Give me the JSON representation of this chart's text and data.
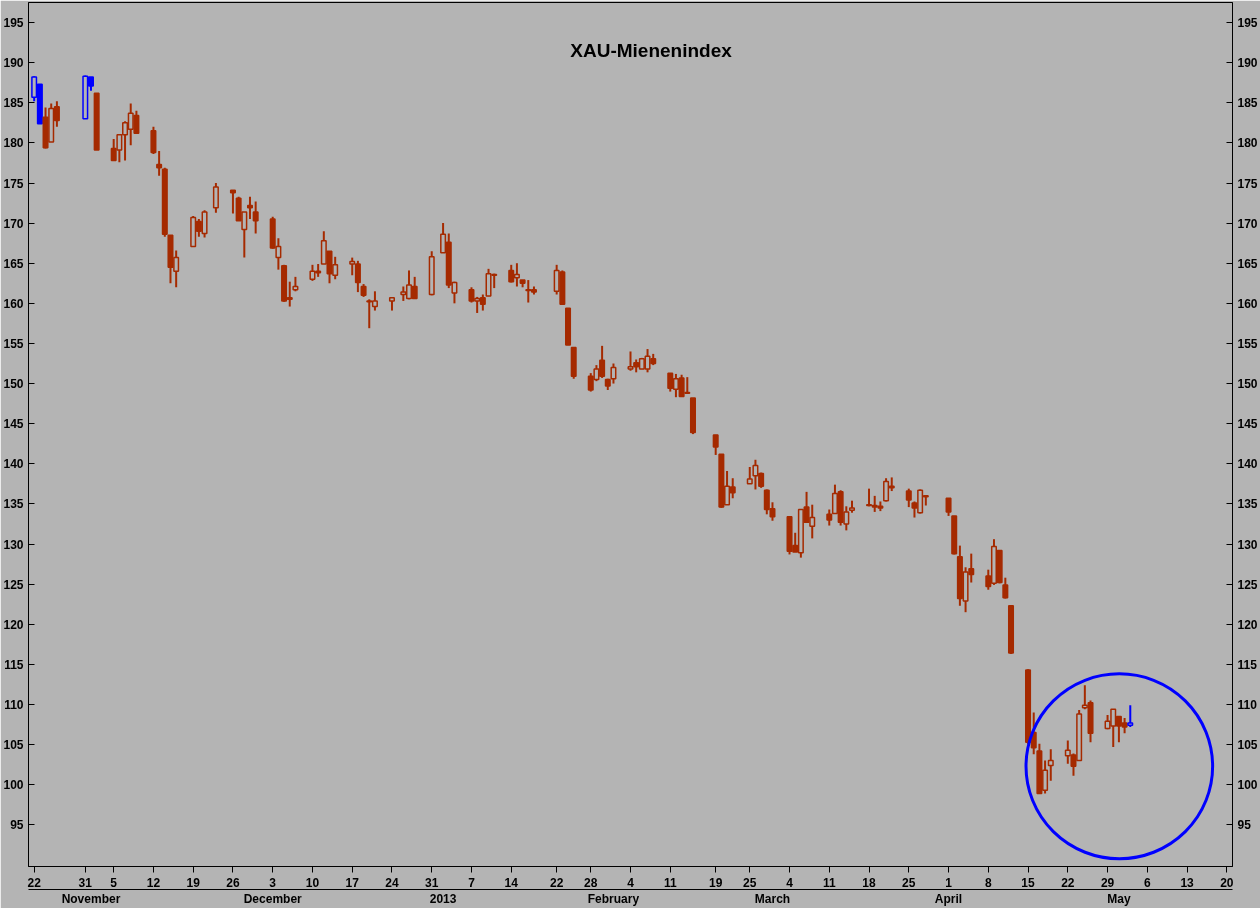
{
  "chart_data": {
    "type": "candlestick",
    "title": "XAU-Mienenindex",
    "x": [
      "2012-10-22",
      "2012-10-23",
      "2012-10-24",
      "2012-10-25",
      "2012-10-26",
      "2012-10-31",
      "2012-11-01",
      "2012-11-02",
      "2012-11-05",
      "2012-11-06",
      "2012-11-07",
      "2012-11-08",
      "2012-11-09",
      "2012-11-12",
      "2012-11-13",
      "2012-11-14",
      "2012-11-15",
      "2012-11-16",
      "2012-11-19",
      "2012-11-20",
      "2012-11-21",
      "2012-11-23",
      "2012-11-26",
      "2012-11-27",
      "2012-11-28",
      "2012-11-29",
      "2012-11-30",
      "2012-12-03",
      "2012-12-04",
      "2012-12-05",
      "2012-12-06",
      "2012-12-07",
      "2012-12-10",
      "2012-12-11",
      "2012-12-12",
      "2012-12-13",
      "2012-12-14",
      "2012-12-17",
      "2012-12-18",
      "2012-12-19",
      "2012-12-20",
      "2012-12-21",
      "2012-12-24",
      "2012-12-26",
      "2012-12-27",
      "2012-12-28",
      "2012-12-31",
      "2013-01-02",
      "2013-01-03",
      "2013-01-04",
      "2013-01-07",
      "2013-01-08",
      "2013-01-09",
      "2013-01-10",
      "2013-01-11",
      "2013-01-14",
      "2013-01-15",
      "2013-01-16",
      "2013-01-17",
      "2013-01-18",
      "2013-01-22",
      "2013-01-23",
      "2013-01-24",
      "2013-01-25",
      "2013-01-28",
      "2013-01-29",
      "2013-01-30",
      "2013-01-31",
      "2013-02-01",
      "2013-02-04",
      "2013-02-05",
      "2013-02-06",
      "2013-02-07",
      "2013-02-08",
      "2013-02-11",
      "2013-02-12",
      "2013-02-13",
      "2013-02-14",
      "2013-02-15",
      "2013-02-19",
      "2013-02-20",
      "2013-02-21",
      "2013-02-22",
      "2013-02-25",
      "2013-02-26",
      "2013-02-27",
      "2013-02-28",
      "2013-03-01",
      "2013-03-04",
      "2013-03-05",
      "2013-03-06",
      "2013-03-07",
      "2013-03-08",
      "2013-03-11",
      "2013-03-12",
      "2013-03-13",
      "2013-03-14",
      "2013-03-15",
      "2013-03-18",
      "2013-03-19",
      "2013-03-20",
      "2013-03-21",
      "2013-03-22",
      "2013-03-25",
      "2013-03-26",
      "2013-03-27",
      "2013-03-28",
      "2013-04-01",
      "2013-04-02",
      "2013-04-03",
      "2013-04-04",
      "2013-04-05",
      "2013-04-08",
      "2013-04-09",
      "2013-04-10",
      "2013-04-11",
      "2013-04-12",
      "2013-04-15",
      "2013-04-16",
      "2013-04-17",
      "2013-04-18",
      "2013-04-19",
      "2013-04-22",
      "2013-04-23",
      "2013-04-24",
      "2013-04-25",
      "2013-04-26",
      "2013-04-29",
      "2013-04-30",
      "2013-05-01",
      "2013-05-02",
      "2013-05-03"
    ],
    "ohlc": [
      [
        185.7,
        188.3,
        185.2,
        188.2
      ],
      [
        187.3,
        187.3,
        182.4,
        182.4
      ],
      [
        183.2,
        184.4,
        179.3,
        179.4
      ],
      [
        180.1,
        184.9,
        180.1,
        184.3
      ],
      [
        184.5,
        185.2,
        182.0,
        182.8
      ],
      [
        183.0,
        188.4,
        183.0,
        188.3
      ],
      [
        188.2,
        188.2,
        186.5,
        187.1
      ],
      [
        186.2,
        186.2,
        179.1,
        179.1
      ],
      [
        179.3,
        180.5,
        177.8,
        177.8
      ],
      [
        179.1,
        181.1,
        177.6,
        181.0
      ],
      [
        181.0,
        182.7,
        177.8,
        182.5
      ],
      [
        181.7,
        184.9,
        179.7,
        183.7
      ],
      [
        183.4,
        184.0,
        181.1,
        181.2
      ],
      [
        181.5,
        182.0,
        178.6,
        178.8
      ],
      [
        177.3,
        179.0,
        175.9,
        176.9
      ],
      [
        176.7,
        176.9,
        168.3,
        168.6
      ],
      [
        168.5,
        168.5,
        162.5,
        164.5
      ],
      [
        164.0,
        166.6,
        162.0,
        165.7
      ],
      [
        167.1,
        170.9,
        167.1,
        170.7
      ],
      [
        170.2,
        170.5,
        168.3,
        169.0
      ],
      [
        168.7,
        171.6,
        168.2,
        171.4
      ],
      [
        171.9,
        175.0,
        171.3,
        174.5
      ],
      [
        174.1,
        174.1,
        171.2,
        173.8
      ],
      [
        173.1,
        173.3,
        170.3,
        170.3
      ],
      [
        169.2,
        171.4,
        165.7,
        171.4
      ],
      [
        172.2,
        173.3,
        170.5,
        171.9
      ],
      [
        171.4,
        172.7,
        168.7,
        170.3
      ],
      [
        170.5,
        170.8,
        166.8,
        166.9
      ],
      [
        165.7,
        168.1,
        164.2,
        167.1
      ],
      [
        164.7,
        164.8,
        160.2,
        160.3
      ],
      [
        160.7,
        162.7,
        159.6,
        160.5
      ],
      [
        161.7,
        163.3,
        161.5,
        162.1
      ],
      [
        163.0,
        164.8,
        162.8,
        164.0
      ],
      [
        164.0,
        164.9,
        163.3,
        163.8
      ],
      [
        164.9,
        169.0,
        164.9,
        167.8
      ],
      [
        166.5,
        166.5,
        162.5,
        163.7
      ],
      [
        163.5,
        165.8,
        163.0,
        164.8
      ],
      [
        164.9,
        165.7,
        163.5,
        165.2
      ],
      [
        164.9,
        165.3,
        161.4,
        162.6
      ],
      [
        162.1,
        162.4,
        160.8,
        161.0
      ],
      [
        160.3,
        160.5,
        156.9,
        160.2
      ],
      [
        159.6,
        161.5,
        159.1,
        160.3
      ],
      [
        160.3,
        160.7,
        159.1,
        160.7
      ],
      [
        161.1,
        162.1,
        160.3,
        161.4
      ],
      [
        160.6,
        164.1,
        160.5,
        162.3
      ],
      [
        162.1,
        163.3,
        160.6,
        160.6
      ],
      [
        161.1,
        166.5,
        161.0,
        165.8
      ],
      [
        166.3,
        170.0,
        166.3,
        168.6
      ],
      [
        167.6,
        168.7,
        161.9,
        162.3
      ],
      [
        161.3,
        162.7,
        160.0,
        162.6
      ],
      [
        161.7,
        162.0,
        160.1,
        160.3
      ],
      [
        160.3,
        160.8,
        158.8,
        160.6
      ],
      [
        160.7,
        161.1,
        159.1,
        159.9
      ],
      [
        160.9,
        164.3,
        160.9,
        163.7
      ],
      [
        163.5,
        163.7,
        161.9,
        163.6
      ],
      [
        164.1,
        164.8,
        162.6,
        162.7
      ],
      [
        163.2,
        165.0,
        162.1,
        163.6
      ],
      [
        162.9,
        162.9,
        162.0,
        162.5
      ],
      [
        161.7,
        162.9,
        160.1,
        161.6
      ],
      [
        161.7,
        162.1,
        161.1,
        161.4
      ],
      [
        161.5,
        164.8,
        161.1,
        164.1
      ],
      [
        163.9,
        164.1,
        159.9,
        159.9
      ],
      [
        159.4,
        159.4,
        154.8,
        154.8
      ],
      [
        154.5,
        154.5,
        150.6,
        150.9
      ],
      [
        150.9,
        151.3,
        149.0,
        149.2
      ],
      [
        150.5,
        152.3,
        150.3,
        151.8
      ],
      [
        152.9,
        154.7,
        150.7,
        150.9
      ],
      [
        150.5,
        150.6,
        149.2,
        149.7
      ],
      [
        150.6,
        152.5,
        150.0,
        152.0
      ],
      [
        151.8,
        154.0,
        151.6,
        152.1
      ],
      [
        152.6,
        153.0,
        151.4,
        152.1
      ],
      [
        151.8,
        153.2,
        151.8,
        153.1
      ],
      [
        151.8,
        154.3,
        151.4,
        153.4
      ],
      [
        153.1,
        153.7,
        152.3,
        152.5
      ],
      [
        151.3,
        151.3,
        149.0,
        149.4
      ],
      [
        149.3,
        151.2,
        148.3,
        150.6
      ],
      [
        150.7,
        151.1,
        148.4,
        148.4
      ],
      [
        148.9,
        150.8,
        148.7,
        148.8
      ],
      [
        148.2,
        148.2,
        143.7,
        143.9
      ],
      [
        143.6,
        143.6,
        141.1,
        142.1
      ],
      [
        141.2,
        141.2,
        134.5,
        134.6
      ],
      [
        134.9,
        139.1,
        134.9,
        137.2
      ],
      [
        137.1,
        138.2,
        135.7,
        136.4
      ],
      [
        137.5,
        139.6,
        137.5,
        138.1
      ],
      [
        138.5,
        140.5,
        136.8,
        139.8
      ],
      [
        138.8,
        138.9,
        137.0,
        137.2
      ],
      [
        136.7,
        136.8,
        133.7,
        134.3
      ],
      [
        134.4,
        135.2,
        132.9,
        133.4
      ],
      [
        133.4,
        133.4,
        128.7,
        129.1
      ],
      [
        129.8,
        131.4,
        129.0,
        129.0
      ],
      [
        128.9,
        134.3,
        128.3,
        134.3
      ],
      [
        134.6,
        136.5,
        132.7,
        132.7
      ],
      [
        132.2,
        134.9,
        130.7,
        133.3
      ],
      [
        133.7,
        134.3,
        132.3,
        133.0
      ],
      [
        133.8,
        137.4,
        133.8,
        136.3
      ],
      [
        136.5,
        136.7,
        132.3,
        132.7
      ],
      [
        132.5,
        134.7,
        131.7,
        134.0
      ],
      [
        134.2,
        135.4,
        133.9,
        134.5
      ],
      [
        134.9,
        136.9,
        134.7,
        134.8
      ],
      [
        134.6,
        136.0,
        134.0,
        134.8
      ],
      [
        134.7,
        135.3,
        134.1,
        134.5
      ],
      [
        135.4,
        138.2,
        135.3,
        137.8
      ],
      [
        137.2,
        138.3,
        136.6,
        137.0
      ],
      [
        136.6,
        136.9,
        134.6,
        135.5
      ],
      [
        135.1,
        135.3,
        133.3,
        134.5
      ],
      [
        133.9,
        136.8,
        133.8,
        136.7
      ],
      [
        136.0,
        136.0,
        134.8,
        135.9
      ],
      [
        135.7,
        135.7,
        133.5,
        134.0
      ],
      [
        133.5,
        133.5,
        128.7,
        128.8
      ],
      [
        128.4,
        129.8,
        122.3,
        123.2
      ],
      [
        122.9,
        127.1,
        121.5,
        126.5
      ],
      [
        126.9,
        128.8,
        125.2,
        126.2
      ],
      [
        126.0,
        126.8,
        124.3,
        124.7
      ],
      [
        125.1,
        130.6,
        124.9,
        129.7
      ],
      [
        129.2,
        129.2,
        125.1,
        125.2
      ],
      [
        124.9,
        125.8,
        123.2,
        123.3
      ],
      [
        122.3,
        122.3,
        116.3,
        116.4
      ],
      [
        114.3,
        114.4,
        105.0,
        105.3
      ],
      [
        106.5,
        109.0,
        103.8,
        104.6
      ],
      [
        104.2,
        105.1,
        98.9,
        98.9
      ],
      [
        99.3,
        103.0,
        98.9,
        101.8
      ],
      [
        102.4,
        104.4,
        100.5,
        103.0
      ],
      [
        103.6,
        105.5,
        102.6,
        104.3
      ],
      [
        103.7,
        103.9,
        101.1,
        102.3
      ],
      [
        103.0,
        109.3,
        103.0,
        108.8
      ],
      [
        109.6,
        112.4,
        109.4,
        109.9
      ],
      [
        110.2,
        110.5,
        105.3,
        106.4
      ],
      [
        107.0,
        108.7,
        106.9,
        107.9
      ],
      [
        107.3,
        109.4,
        104.7,
        109.4
      ],
      [
        108.5,
        108.5,
        105.3,
        107.3
      ],
      [
        107.7,
        108.3,
        106.4,
        107.2
      ],
      [
        107.4,
        109.9,
        107.2,
        107.7
      ]
    ],
    "colors": [
      "#0000ff",
      "#0000ff",
      "#a52a00",
      "#a52a00",
      "#a52a00",
      "#0000ff",
      "#0000ff",
      "#a52a00",
      "#a52a00",
      "#a52a00",
      "#a52a00",
      "#a52a00",
      "#a52a00",
      "#a52a00",
      "#a52a00",
      "#a52a00",
      "#a52a00",
      "#a52a00",
      "#a52a00",
      "#a52a00",
      "#a52a00",
      "#a52a00",
      "#a52a00",
      "#a52a00",
      "#a52a00",
      "#a52a00",
      "#a52a00",
      "#a52a00",
      "#a52a00",
      "#a52a00",
      "#a52a00",
      "#a52a00",
      "#a52a00",
      "#a52a00",
      "#a52a00",
      "#a52a00",
      "#a52a00",
      "#a52a00",
      "#a52a00",
      "#a52a00",
      "#a52a00",
      "#a52a00",
      "#a52a00",
      "#a52a00",
      "#a52a00",
      "#a52a00",
      "#a52a00",
      "#a52a00",
      "#a52a00",
      "#a52a00",
      "#a52a00",
      "#a52a00",
      "#a52a00",
      "#a52a00",
      "#a52a00",
      "#a52a00",
      "#a52a00",
      "#a52a00",
      "#a52a00",
      "#a52a00",
      "#a52a00",
      "#a52a00",
      "#a52a00",
      "#a52a00",
      "#a52a00",
      "#a52a00",
      "#a52a00",
      "#a52a00",
      "#a52a00",
      "#a52a00",
      "#a52a00",
      "#a52a00",
      "#a52a00",
      "#a52a00",
      "#a52a00",
      "#a52a00",
      "#a52a00",
      "#a52a00",
      "#a52a00",
      "#a52a00",
      "#a52a00",
      "#a52a00",
      "#a52a00",
      "#a52a00",
      "#a52a00",
      "#a52a00",
      "#a52a00",
      "#a52a00",
      "#a52a00",
      "#a52a00",
      "#a52a00",
      "#a52a00",
      "#a52a00",
      "#a52a00",
      "#a52a00",
      "#a52a00",
      "#a52a00",
      "#a52a00",
      "#a52a00",
      "#a52a00",
      "#a52a00",
      "#a52a00",
      "#a52a00",
      "#a52a00",
      "#a52a00",
      "#a52a00",
      "#a52a00",
      "#a52a00",
      "#a52a00",
      "#a52a00",
      "#a52a00",
      "#a52a00",
      "#a52a00",
      "#a52a00",
      "#a52a00",
      "#a52a00",
      "#a52a00",
      "#a52a00",
      "#a52a00",
      "#a52a00",
      "#a52a00",
      "#a52a00",
      "#a52a00",
      "#a52a00",
      "#a52a00",
      "#a52a00",
      "#a52a00",
      "#a52a00",
      "#a52a00",
      "#a52a00",
      "#a52a00",
      "#0000ff"
    ],
    "xlim": [
      "2012-10-21",
      "2013-05-21"
    ],
    "xticks": [
      {
        "value": "2012-10-22",
        "label": "22"
      },
      {
        "value": "2012-10-31",
        "label": "31"
      },
      {
        "value": "2012-11-05",
        "label": "5"
      },
      {
        "value": "2012-11-12",
        "label": "12"
      },
      {
        "value": "2012-11-19",
        "label": "19"
      },
      {
        "value": "2012-11-26",
        "label": "26"
      },
      {
        "value": "2012-12-03",
        "label": "3"
      },
      {
        "value": "2012-12-10",
        "label": "10"
      },
      {
        "value": "2012-12-17",
        "label": "17"
      },
      {
        "value": "2012-12-24",
        "label": "24"
      },
      {
        "value": "2012-12-31",
        "label": "31"
      },
      {
        "value": "2013-01-07",
        "label": "7"
      },
      {
        "value": "2013-01-14",
        "label": "14"
      },
      {
        "value": "2013-01-22",
        "label": "22"
      },
      {
        "value": "2013-01-28",
        "label": "28"
      },
      {
        "value": "2013-02-04",
        "label": "4"
      },
      {
        "value": "2013-02-11",
        "label": "11"
      },
      {
        "value": "2013-02-19",
        "label": "19"
      },
      {
        "value": "2013-02-25",
        "label": "25"
      },
      {
        "value": "2013-03-04",
        "label": "4"
      },
      {
        "value": "2013-03-11",
        "label": "11"
      },
      {
        "value": "2013-03-18",
        "label": "18"
      },
      {
        "value": "2013-03-25",
        "label": "25"
      },
      {
        "value": "2013-04-01",
        "label": "1"
      },
      {
        "value": "2013-04-08",
        "label": "8"
      },
      {
        "value": "2013-04-15",
        "label": "15"
      },
      {
        "value": "2013-04-22",
        "label": "22"
      },
      {
        "value": "2013-04-29",
        "label": "29"
      },
      {
        "value": "2013-05-06",
        "label": "6"
      },
      {
        "value": "2013-05-13",
        "label": "13"
      },
      {
        "value": "2013-05-20",
        "label": "20"
      }
    ],
    "ylim": [
      89.8,
      197.5
    ],
    "yticks": [
      95,
      100,
      105,
      110,
      115,
      120,
      125,
      130,
      135,
      140,
      145,
      150,
      155,
      160,
      165,
      170,
      175,
      180,
      185,
      190,
      195
    ],
    "y2lim": [
      89.8,
      197.5
    ],
    "y2ticks": [
      95,
      100,
      105,
      110,
      115,
      120,
      125,
      130,
      135,
      140,
      145,
      150,
      155,
      160,
      165,
      170,
      175,
      180,
      185,
      190,
      195
    ],
    "x2lim": [
      "2012-10-21",
      "2013-05-21"
    ],
    "x2ticks": [
      {
        "value": "2012-11-01",
        "label": "November"
      },
      {
        "value": "2012-12-03",
        "label": "December"
      },
      {
        "value": "2013-01-02",
        "label": "2013"
      },
      {
        "value": "2013-02-01",
        "label": "February"
      },
      {
        "value": "2013-03-01",
        "label": "March"
      },
      {
        "value": "2013-04-01",
        "label": "April"
      },
      {
        "value": "2013-05-01",
        "label": "May"
      }
    ]
  }
}
